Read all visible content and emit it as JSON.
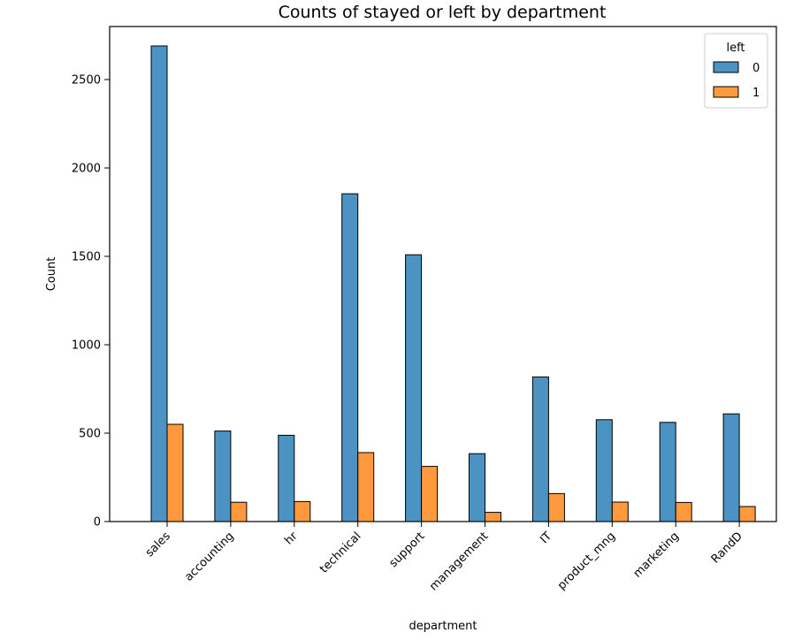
{
  "chart_data": {
    "type": "bar",
    "title": "Counts of stayed or left by department",
    "xlabel": "department",
    "ylabel": "Count",
    "ylim": [
      0,
      2800
    ],
    "yticks": [
      0,
      500,
      1000,
      1500,
      2000,
      2500
    ],
    "categories": [
      "sales",
      "accounting",
      "hr",
      "technical",
      "support",
      "management",
      "IT",
      "product_mng",
      "marketing",
      "RandD"
    ],
    "legend": {
      "title": "left",
      "position": "top-right"
    },
    "series": [
      {
        "name": "0",
        "color": "#1f77b4",
        "values": [
          2690,
          512,
          488,
          1854,
          1509,
          384,
          818,
          576,
          561,
          609
        ]
      },
      {
        "name": "1",
        "color": "#ff7f0e",
        "values": [
          550,
          109,
          113,
          390,
          312,
          52,
          158,
          110,
          108,
          85
        ]
      }
    ]
  }
}
